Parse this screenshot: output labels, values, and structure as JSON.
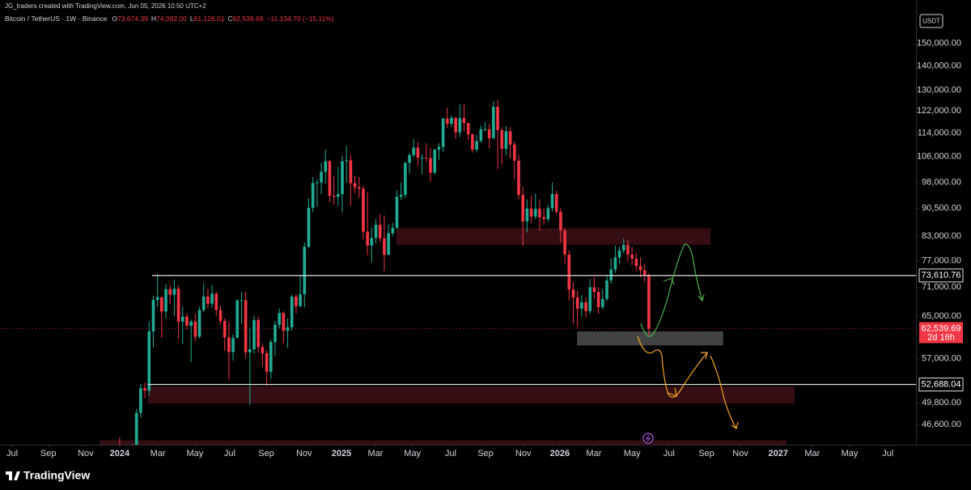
{
  "header": {
    "credit": "JG_traders created with TradingView.com, Jun 05, 2026 10:50 UTC+2",
    "symbol": "Bitcoin / TetherUS · 1W · Binance",
    "ohlc": [
      {
        "key": "O",
        "value": "73,674.39"
      },
      {
        "key": "H",
        "value": "74,092.00"
      },
      {
        "key": "L",
        "value": "61,126.01"
      },
      {
        "key": "C",
        "value": "62,539.69"
      }
    ],
    "change": "−11,134.70 (−15.11%)"
  },
  "currency": "USDT",
  "footer": {
    "brand": "TradingView"
  },
  "chart_data": {
    "type": "candlestick",
    "log_scale": true,
    "grid": false,
    "up_color": "#22ab94",
    "down_color": "#f23645",
    "ylim": [
      43800,
      171400
    ],
    "yticks": [
      {
        "value": 150000,
        "label": "150,000.00"
      },
      {
        "value": 140000,
        "label": "140,000.00"
      },
      {
        "value": 130000,
        "label": "130,000.00"
      },
      {
        "value": 122000,
        "label": "122,000.00"
      },
      {
        "value": 114000,
        "label": "114,000.00"
      },
      {
        "value": 106000,
        "label": "106,000.00"
      },
      {
        "value": 98000,
        "label": "98,000.00"
      },
      {
        "value": 90500,
        "label": "90,500.00"
      },
      {
        "value": 83000,
        "label": "83,000.00"
      },
      {
        "value": 77000,
        "label": "77,000.00"
      },
      {
        "value": 71000,
        "label": "71,000.00"
      },
      {
        "value": 65000,
        "label": "65,000.00"
      },
      {
        "value": 57000,
        "label": "57,000.00"
      },
      {
        "value": 49800,
        "label": "49,800.00"
      },
      {
        "value": 46600,
        "label": "46,600.00"
      }
    ],
    "xlim": [
      -28.5,
      189.6
    ],
    "xticks": [
      {
        "value": -25.6,
        "label": "Jul"
      },
      {
        "value": -17.0,
        "label": "Sep"
      },
      {
        "value": -8.1,
        "label": "Nov"
      },
      {
        "value": 0,
        "label": "2024"
      },
      {
        "value": 9.1,
        "label": "Mar"
      },
      {
        "value": 17.9,
        "label": "May"
      },
      {
        "value": 26.2,
        "label": "Jul"
      },
      {
        "value": 34.9,
        "label": "Sep"
      },
      {
        "value": 43.9,
        "label": "Nov"
      },
      {
        "value": 52.8,
        "label": "2025"
      },
      {
        "value": 60.9,
        "label": "Mar"
      },
      {
        "value": 69.7,
        "label": "May"
      },
      {
        "value": 78.8,
        "label": "Jul"
      },
      {
        "value": 87.1,
        "label": "Sep"
      },
      {
        "value": 96.1,
        "label": "Nov"
      },
      {
        "value": 104.8,
        "label": "2026"
      },
      {
        "value": 112.9,
        "label": "Mar"
      },
      {
        "value": 122.0,
        "label": "May"
      },
      {
        "value": 130.8,
        "label": "Jul"
      },
      {
        "value": 139.7,
        "label": "Sep"
      },
      {
        "value": 147.8,
        "label": "Nov"
      },
      {
        "value": 156.8,
        "label": "2027"
      },
      {
        "value": 164.9,
        "label": "Mar"
      },
      {
        "value": 173.8,
        "label": "May"
      },
      {
        "value": 182.9,
        "label": "Jul"
      }
    ],
    "open": [
      42300,
      41700,
      41600,
      41800,
      42600,
      48300,
      52100,
      51700,
      62000,
      68300,
      68900,
      65900,
      70600,
      69400,
      70700,
      63900,
      64900,
      63100,
      63900,
      61000,
      66200,
      69000,
      67500,
      69600,
      66200,
      64000,
      60900,
      58200,
      60800,
      68200,
      68250,
      58150,
      58700,
      64200,
      59100,
      58000,
      54800,
      60000,
      63300,
      65600,
      62100,
      62800,
      69000,
      67000,
      69500,
      80400,
      90600,
      97800,
      97900,
      101200,
      104500,
      94000,
      93700,
      94500,
      104500,
      104800,
      97700,
      96500,
      96100,
      84200,
      80700,
      82600,
      86000,
      82500,
      78400,
      83800,
      85200,
      93700,
      94300,
      104000,
      106500,
      109000,
      105700,
      105700,
      105500,
      100900,
      108300,
      109200,
      119100,
      117300,
      119400,
      114200,
      119300,
      117500,
      113500,
      108300,
      111200,
      115300,
      115300,
      112200,
      123500,
      115000,
      108600,
      114600,
      110000,
      104700,
      94300,
      86900,
      90400,
      88200,
      90300,
      88000,
      87500,
      90500,
      94500,
      89500,
      84500,
      78500,
      70500,
      68800,
      66500,
      67800,
      66000,
      71000,
      70000,
      66800,
      68500,
      72500,
      75000,
      77800,
      79500,
      80800,
      78500,
      77500,
      75800,
      74800,
      73674.39
    ],
    "high": [
      44800,
      43000,
      42800,
      43900,
      48900,
      52800,
      53000,
      64000,
      69200,
      73800,
      68100,
      71800,
      71400,
      72700,
      71400,
      66900,
      65600,
      64300,
      65500,
      66900,
      71900,
      70600,
      71500,
      70000,
      67200,
      64500,
      63800,
      61400,
      68400,
      70000,
      70000,
      62800,
      65000,
      64900,
      59800,
      58500,
      60500,
      64000,
      66500,
      66000,
      64500,
      69400,
      69500,
      73600,
      81500,
      93300,
      99600,
      99000,
      104000,
      108300,
      105000,
      99900,
      102700,
      106400,
      109600,
      106500,
      100000,
      99500,
      96900,
      95000,
      85300,
      87500,
      88800,
      88500,
      86100,
      86500,
      95700,
      97900,
      104400,
      107100,
      111900,
      110700,
      106800,
      110500,
      108900,
      108500,
      110500,
      119500,
      123200,
      120200,
      119800,
      124400,
      124500,
      117500,
      113800,
      113400,
      116700,
      117900,
      117100,
      125700,
      126200,
      116000,
      116400,
      116000,
      111000,
      106600,
      96600,
      93000,
      94100,
      94600,
      93000,
      90500,
      91500,
      97900,
      95500,
      90500,
      85200,
      79500,
      72100,
      70200,
      69300,
      68800,
      72800,
      73200,
      71000,
      70600,
      73800,
      77600,
      80700,
      80500,
      82400,
      82100,
      80400,
      78900,
      77800,
      76300,
      74092
    ],
    "low": [
      38500,
      40200,
      38600,
      41000,
      42300,
      47600,
      50500,
      50900,
      59000,
      66800,
      60800,
      64500,
      67500,
      65100,
      60600,
      59600,
      62400,
      56500,
      60200,
      60700,
      65800,
      66600,
      66700,
      65000,
      63400,
      58400,
      53500,
      56700,
      60700,
      63500,
      57100,
      49500,
      57900,
      58100,
      55600,
      52500,
      53600,
      57500,
      62600,
      59800,
      58900,
      62100,
      65500,
      66800,
      66800,
      80100,
      89400,
      90800,
      94500,
      97600,
      92200,
      91500,
      91200,
      89300,
      97800,
      91200,
      94700,
      93400,
      82300,
      78300,
      76600,
      81200,
      81600,
      74600,
      78800,
      83000,
      84900,
      92800,
      93400,
      100700,
      105800,
      103100,
      100400,
      104200,
      98200,
      100300,
      105000,
      107500,
      115800,
      116200,
      111900,
      112600,
      114700,
      111700,
      107300,
      107400,
      110600,
      114600,
      108700,
      111900,
      102000,
      103500,
      106300,
      105300,
      98900,
      93000,
      80600,
      84000,
      86500,
      87500,
      84500,
      86000,
      86800,
      89500,
      88800,
      81500,
      76300,
      68200,
      63500,
      62800,
      64900,
      64700,
      65500,
      68500,
      65500,
      66300,
      68100,
      71800,
      74200,
      76200,
      78800,
      76900,
      76000,
      74600,
      73200,
      72100,
      61126.01
    ],
    "close": [
      41700,
      41600,
      41800,
      42600,
      48300,
      52100,
      51700,
      62000,
      68300,
      68900,
      65900,
      70600,
      69400,
      70700,
      63900,
      64900,
      63100,
      63900,
      61000,
      66200,
      69000,
      67500,
      69600,
      66200,
      64000,
      60900,
      58200,
      60800,
      68200,
      68250,
      58150,
      58700,
      64200,
      59100,
      58000,
      54800,
      60000,
      63300,
      65600,
      62100,
      62800,
      69000,
      67000,
      69500,
      80400,
      90600,
      97800,
      97900,
      101200,
      104500,
      94000,
      93700,
      94500,
      104500,
      104800,
      97700,
      96500,
      96100,
      84200,
      80700,
      82600,
      86000,
      82500,
      78400,
      83800,
      85200,
      93700,
      94300,
      104000,
      106500,
      109000,
      105700,
      105700,
      105500,
      100900,
      108300,
      109200,
      119100,
      117300,
      119400,
      114200,
      119300,
      117500,
      113500,
      108300,
      111200,
      115300,
      115300,
      112200,
      123500,
      115000,
      108600,
      114600,
      110000,
      104700,
      94300,
      86900,
      90400,
      88200,
      90300,
      88000,
      87500,
      90500,
      94500,
      89500,
      84500,
      78500,
      70500,
      68800,
      66500,
      67800,
      66000,
      71000,
      70000,
      66800,
      68500,
      72500,
      75000,
      77800,
      79500,
      80800,
      78500,
      77500,
      75800,
      74800,
      73674.39,
      62539.69
    ],
    "zones": [
      {
        "from": 65.9,
        "to": 140.7,
        "high": 85100,
        "low": 80900,
        "color": "#3a0f14"
      },
      {
        "from": 108.9,
        "to": 143.7,
        "high": 62000,
        "low": 59400,
        "color": "#4a4a4a"
      },
      {
        "from": 6.7,
        "to": 160.7,
        "high": 52400,
        "low": 49700,
        "color": "#3a0f14"
      },
      {
        "from": -4.8,
        "to": 158.8,
        "high": 44400,
        "low": 43800,
        "color": "#3a0f14"
      }
    ],
    "levels": [
      {
        "value": 73610.76,
        "label": "73,610.76",
        "from": 7.7
      },
      {
        "value": 52688.04,
        "label": "52,688.04",
        "from": 6.7
      }
    ],
    "last_price": {
      "value": 62539.69,
      "label": "62,539.69",
      "countdown": "2d 16h"
    }
  }
}
